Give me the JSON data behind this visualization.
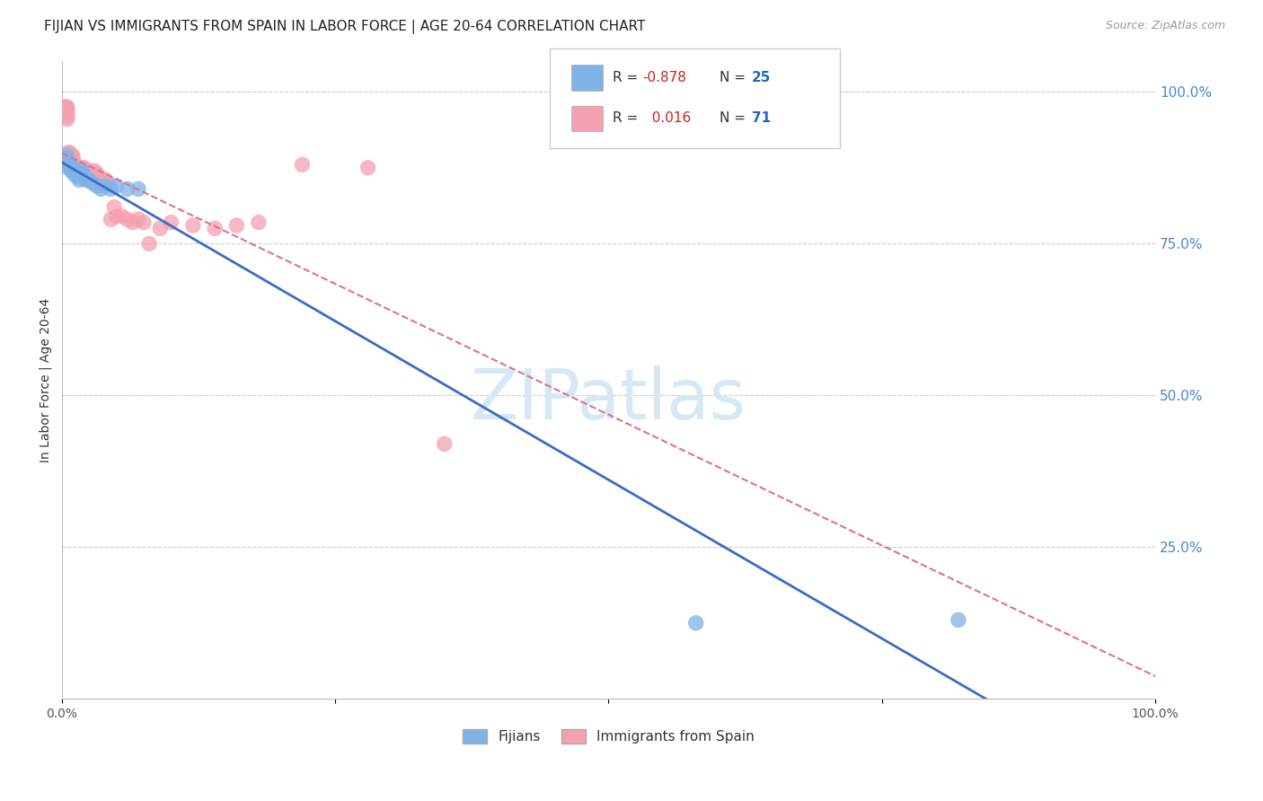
{
  "title": "FIJIAN VS IMMIGRANTS FROM SPAIN IN LABOR FORCE | AGE 20-64 CORRELATION CHART",
  "source": "Source: ZipAtlas.com",
  "ylabel": "In Labor Force | Age 20-64",
  "fijian_R": -0.878,
  "fijian_N": 25,
  "spain_R": 0.016,
  "spain_N": 71,
  "fijian_color": "#7eb3e8",
  "spain_color": "#f4a0b0",
  "fijian_line_color": "#3a6bc9",
  "spain_line_color": "#e07090",
  "grid_color": "#cccccc",
  "right_axis_color": "#4488cc",
  "watermark_color": "#d5e8f5",
  "background_color": "#ffffff",
  "fijian_x": [
    0.004,
    0.005,
    0.006,
    0.007,
    0.008,
    0.009,
    0.01,
    0.011,
    0.012,
    0.014,
    0.016,
    0.018,
    0.02,
    0.022,
    0.025,
    0.028,
    0.032,
    0.036,
    0.04,
    0.045,
    0.05,
    0.06,
    0.07,
    0.58,
    0.82
  ],
  "fijian_y": [
    0.895,
    0.89,
    0.875,
    0.885,
    0.875,
    0.87,
    0.875,
    0.865,
    0.87,
    0.86,
    0.855,
    0.87,
    0.865,
    0.855,
    0.855,
    0.85,
    0.845,
    0.84,
    0.845,
    0.84,
    0.845,
    0.84,
    0.84,
    0.125,
    0.13
  ],
  "spain_x": [
    0.003,
    0.003,
    0.004,
    0.004,
    0.004,
    0.005,
    0.005,
    0.005,
    0.005,
    0.005,
    0.006,
    0.006,
    0.006,
    0.007,
    0.007,
    0.007,
    0.008,
    0.008,
    0.009,
    0.009,
    0.01,
    0.01,
    0.01,
    0.01,
    0.011,
    0.011,
    0.012,
    0.013,
    0.013,
    0.014,
    0.015,
    0.015,
    0.015,
    0.016,
    0.017,
    0.018,
    0.018,
    0.019,
    0.02,
    0.021,
    0.022,
    0.023,
    0.024,
    0.025,
    0.026,
    0.028,
    0.03,
    0.032,
    0.034,
    0.036,
    0.038,
    0.04,
    0.042,
    0.045,
    0.048,
    0.05,
    0.055,
    0.06,
    0.065,
    0.07,
    0.075,
    0.08,
    0.09,
    0.1,
    0.12,
    0.14,
    0.16,
    0.18,
    0.22,
    0.28,
    0.35
  ],
  "spain_y": [
    0.97,
    0.975,
    0.975,
    0.97,
    0.965,
    0.975,
    0.97,
    0.965,
    0.96,
    0.955,
    0.9,
    0.895,
    0.89,
    0.9,
    0.895,
    0.885,
    0.895,
    0.885,
    0.895,
    0.885,
    0.895,
    0.89,
    0.88,
    0.875,
    0.885,
    0.875,
    0.88,
    0.875,
    0.87,
    0.875,
    0.875,
    0.87,
    0.865,
    0.875,
    0.87,
    0.875,
    0.865,
    0.87,
    0.875,
    0.87,
    0.865,
    0.87,
    0.865,
    0.87,
    0.865,
    0.865,
    0.87,
    0.865,
    0.86,
    0.855,
    0.855,
    0.855,
    0.85,
    0.79,
    0.81,
    0.795,
    0.795,
    0.79,
    0.785,
    0.79,
    0.785,
    0.75,
    0.775,
    0.785,
    0.78,
    0.775,
    0.78,
    0.785,
    0.88,
    0.875,
    0.42
  ],
  "ytick_labels": [
    "100.0%",
    "75.0%",
    "50.0%",
    "25.0%"
  ],
  "ytick_values": [
    1.0,
    0.75,
    0.5,
    0.25
  ],
  "xlim": [
    0.0,
    1.0
  ],
  "ylim": [
    0.0,
    1.05
  ]
}
